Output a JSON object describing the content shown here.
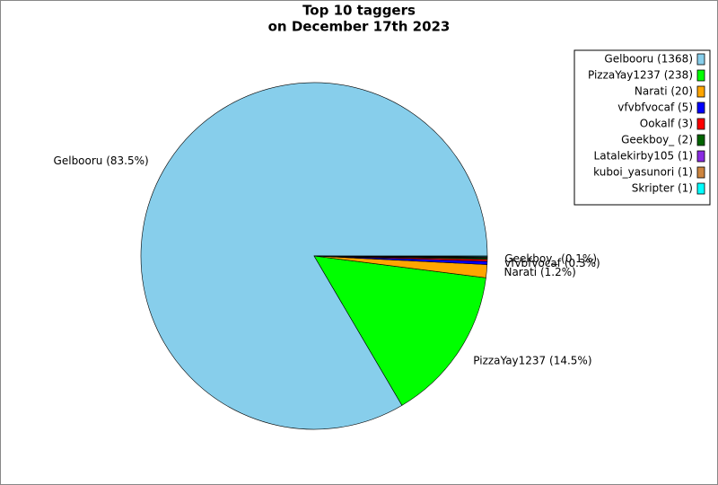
{
  "chart_data": {
    "type": "pie",
    "title": [
      "Top 10 taggers",
      "on December 17th 2023"
    ],
    "categories": [
      "Gelbooru (1368)",
      "PizzaYay1237 (238)",
      "Narati (20)",
      "vfvbfvocaf (5)",
      "Ookalf (3)",
      "Geekboy_ (2)",
      "Latalekirby105 (1)",
      "kuboi_yasunori (1)",
      "Skripter (1)"
    ],
    "values": [
      1368,
      238,
      20,
      5,
      3,
      2,
      1,
      1,
      1
    ],
    "value_labels": [
      "Gelbooru (83.5%)",
      "PizzaYay1237 (14.5%)",
      "Narati (1.2%)",
      "vfvbfvocaf (0.3%)",
      null,
      "Geekboy_ (0.1%)",
      null,
      null,
      null
    ],
    "colors": [
      "#87ceeb",
      "#00ff00",
      "#ffa500",
      "#0000ff",
      "#ff0000",
      "#006400",
      "#8a2be2",
      "#cd853f",
      "#00ffff"
    ],
    "legend": "upper right"
  }
}
